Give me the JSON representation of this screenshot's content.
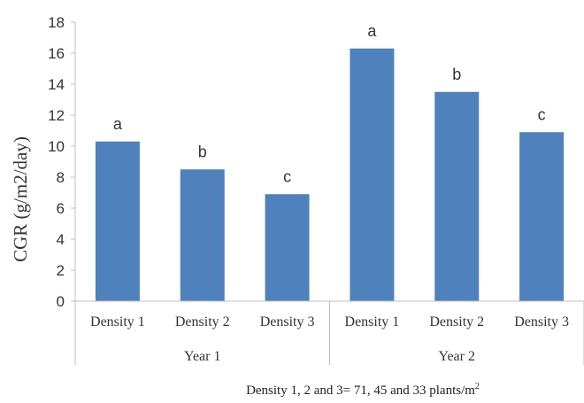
{
  "chart_data": {
    "type": "bar",
    "title": "",
    "ylabel": "CGR (g/m2/day)",
    "xlabel": "",
    "ylim": [
      0,
      18
    ],
    "yticks": [
      0,
      2,
      4,
      6,
      8,
      10,
      12,
      14,
      16,
      18
    ],
    "grid": false,
    "groups": [
      "Year 1",
      "Year 2"
    ],
    "categories": [
      "Density 1",
      "Density 2",
      "Density 3",
      "Density 1",
      "Density 2",
      "Density 3"
    ],
    "values": [
      10.3,
      8.5,
      6.9,
      16.3,
      13.5,
      10.9
    ],
    "bar_labels": [
      "a",
      "b",
      "c",
      "a",
      "b",
      "c"
    ],
    "bar_color": "#4f81bd",
    "footnote": {
      "main": "Density 1, 2 and 3= 71, 45 and 33 plants/m",
      "sup": "2"
    }
  }
}
